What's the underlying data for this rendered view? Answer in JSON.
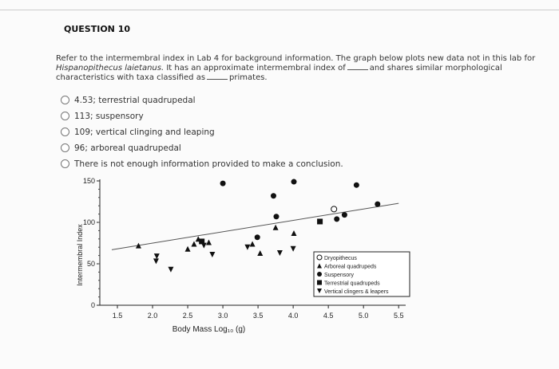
{
  "question": {
    "title": "QUESTION 10",
    "prompt": [
      {
        "text": "Refer to the intermembral index in Lab 4 for background information. The graph below plots new data not in this lab for",
        "style": "normal"
      },
      {
        "text": "Hispanopithecus laietanus.",
        "style": "italic"
      },
      {
        "text": "It has an approximate intermembral index of",
        "style": "normal"
      },
      {
        "text": "and shares similar morphological",
        "style": "normal"
      },
      {
        "text": "characteristics with taxa classified as",
        "style": "normal"
      },
      {
        "text": "primates.",
        "style": "normal"
      }
    ],
    "options": [
      "4.53; terrestrial quadrupedal",
      "113; suspensory",
      "109; vertical clinging and leaping",
      "96; arboreal quadrupedal",
      "There is not enough information provided to make a conclusion."
    ]
  },
  "chart_data": {
    "type": "scatter",
    "xlabel": "Body Mass Log₁₀ (g)",
    "ylabel": "Intermembral Index",
    "xlim": [
      1.25,
      5.6
    ],
    "ylim": [
      0,
      150
    ],
    "xticks": [
      1.5,
      {
        "value": 2,
        "label": "2.0"
      },
      2.5,
      {
        "value": 3,
        "label": "3.0"
      },
      3.5,
      {
        "value": 4,
        "label": "4.0"
      },
      4.5,
      {
        "value": 5,
        "label": "5.0"
      },
      5.5
    ],
    "yticks": [
      0,
      50,
      100,
      150
    ],
    "color": "#111111",
    "series": [
      {
        "name": "Dryopithecus",
        "marker": "open-circle",
        "x": [
          4.58
        ],
        "values": [
          116
        ]
      },
      {
        "name": "Arboreal quadrupeds",
        "marker": "triangle-up",
        "x": [
          1.8,
          2.5,
          2.59,
          2.65,
          2.8,
          3.42,
          3.53,
          3.75,
          4.01
        ],
        "values": [
          72,
          68,
          74,
          80,
          76,
          74,
          63,
          94,
          87
        ]
      },
      {
        "name": "Suspensory",
        "marker": "circle",
        "x": [
          3.0,
          3.49,
          3.72,
          3.76,
          4.01,
          4.62,
          4.73,
          4.9,
          5.2
        ],
        "values": [
          147,
          82,
          132,
          107,
          149,
          104,
          109,
          145,
          122
        ]
      },
      {
        "name": "Terrestrial quadrupeds",
        "marker": "square",
        "x": [
          2.7,
          4.38
        ],
        "values": [
          77,
          101
        ]
      },
      {
        "name": "Vertical clingers & leapers",
        "marker": "triangle-down",
        "x": [
          2.05,
          2.06,
          2.26,
          2.73,
          2.85,
          3.35,
          3.81,
          4.0
        ],
        "values": [
          53,
          59,
          43,
          72,
          61,
          70,
          63,
          68
        ]
      }
    ],
    "trendline": {
      "x": [
        1.42,
        5.5
      ],
      "values": [
        67,
        123
      ]
    }
  }
}
